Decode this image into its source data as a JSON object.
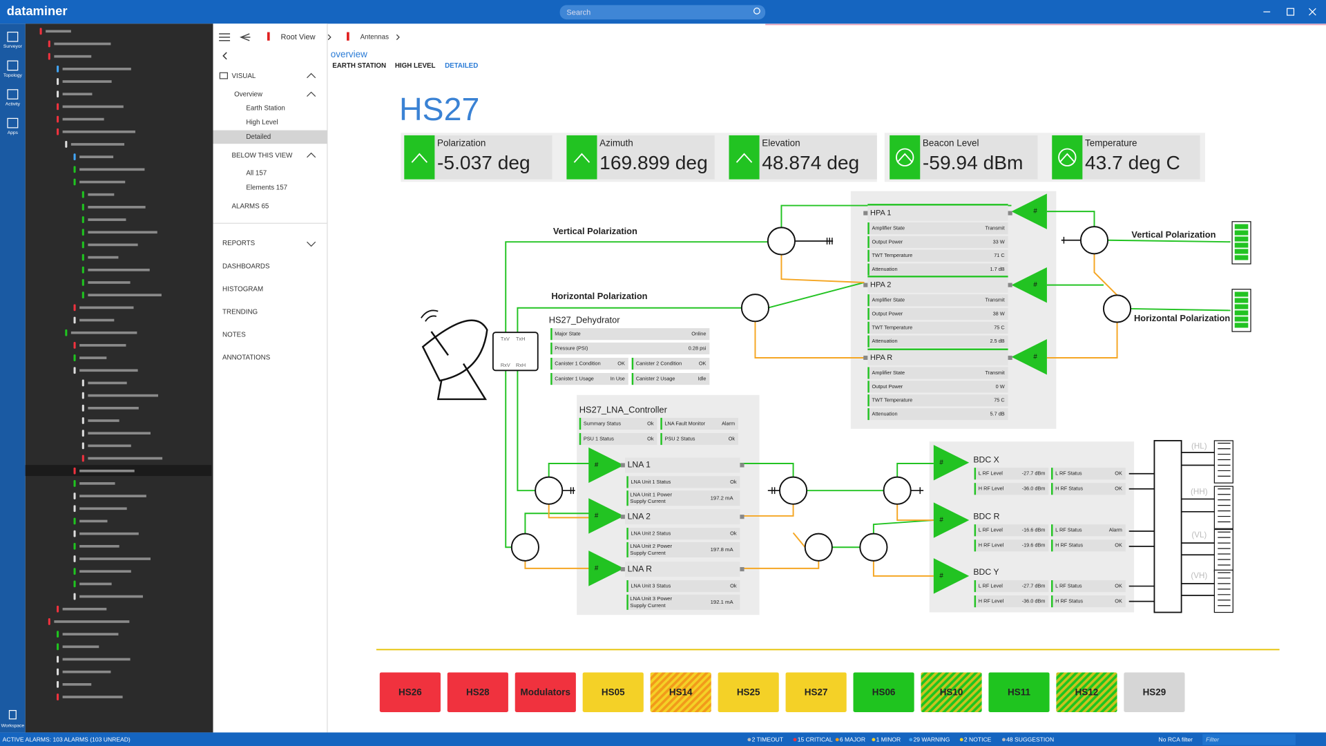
{
  "app": {
    "brand": "dataminer",
    "search": "Search"
  },
  "nav": [
    "Surveyor",
    "Topology",
    "Activity",
    "Apps"
  ],
  "workspace": "Workspace",
  "breadcrumb": [
    "Root View",
    "Antennas"
  ],
  "sidebar": {
    "visual": "VISUAL",
    "overview": "Overview",
    "views": [
      "Earth Station",
      "High Level",
      "Detailed"
    ],
    "below": "BELOW THIS VIEW",
    "below_items": [
      "All 157",
      "Elements 157"
    ],
    "alarms": "ALARMS 65",
    "menu": [
      "REPORTS",
      "DASHBOARDS",
      "HISTOGRAM",
      "TRENDING",
      "NOTES",
      "ANNOTATIONS"
    ]
  },
  "tabs": {
    "label": "overview",
    "items": [
      "EARTH STATION",
      "HIGH LEVEL",
      "DETAILED"
    ]
  },
  "title": "HS27",
  "kpis": [
    {
      "label": "Polarization",
      "value": "-5.037 deg"
    },
    {
      "label": "Azimuth",
      "value": "169.899 deg"
    },
    {
      "label": "Elevation",
      "value": "48.874 deg"
    },
    {
      "label": "Beacon Level",
      "value": "-59.94 dBm"
    },
    {
      "label": "Temperature",
      "value": "43.7 deg C"
    }
  ],
  "diagram": {
    "left_vertical": "Vertical Polarization",
    "left_horizontal": "Horizontal Polarization",
    "right_vertical": "Vertical Polarization",
    "right_horizontal": "Horizontal Polarization",
    "ports": [
      "TxV",
      "TxH",
      "RxV",
      "RxH"
    ],
    "amp_symbol": "#",
    "outputs": [
      "(HL)",
      "(HH)",
      "(VL)",
      "(VH)"
    ]
  },
  "hpas": [
    {
      "name": "HPA 1",
      "rows": [
        [
          "Amplifier State",
          "Transmit"
        ],
        [
          "Output Power",
          "33 W"
        ],
        [
          "TWT Temperature",
          "71 C"
        ],
        [
          "Attenuation",
          "1.7 dB"
        ]
      ]
    },
    {
      "name": "HPA 2",
      "rows": [
        [
          "Amplifier State",
          "Transmit"
        ],
        [
          "Output Power",
          "38 W"
        ],
        [
          "TWT Temperature",
          "75 C"
        ],
        [
          "Attenuation",
          "2.5 dB"
        ]
      ]
    },
    {
      "name": "HPA R",
      "rows": [
        [
          "Amplifier State",
          "Transmit"
        ],
        [
          "Output Power",
          "0 W"
        ],
        [
          "TWT Temperature",
          "75 C"
        ],
        [
          "Attenuation",
          "5.7 dB"
        ]
      ]
    }
  ],
  "dehydrator": {
    "name": "HS27_Dehydrator",
    "rows": [
      [
        "Major State",
        "Online"
      ],
      [
        "Pressure (PSI)",
        "0.28 psi"
      ]
    ],
    "pairs": [
      [
        [
          "Canister 1 Condition",
          "OK"
        ],
        [
          "Canister 2 Condition",
          "OK"
        ]
      ],
      [
        [
          "Canister 1 Usage",
          "In Use"
        ],
        [
          "Canister 2 Usage",
          "Idle"
        ]
      ]
    ]
  },
  "lna_controller": {
    "name": "HS27_LNA_Controller",
    "pairs": [
      [
        [
          "Summary Status",
          "Ok"
        ],
        [
          "LNA Fault Monitor",
          "Alarm"
        ]
      ],
      [
        [
          "PSU 1 Status",
          "Ok"
        ],
        [
          "PSU 2 Status",
          "Ok"
        ]
      ]
    ]
  },
  "lnas": [
    {
      "name": "LNA 1",
      "status": [
        "LNA Unit 1 Status",
        "Ok"
      ],
      "power": [
        [
          "LNA Unit 1 Power",
          "Supply Current"
        ],
        "197.2 mA"
      ]
    },
    {
      "name": "LNA 2",
      "status": [
        "LNA Unit 2 Status",
        "Ok"
      ],
      "power": [
        [
          "LNA Unit 2 Power",
          "Supply Current"
        ],
        "197.8 mA"
      ]
    },
    {
      "name": "LNA R",
      "status": [
        "LNA Unit 3 Status",
        "Ok"
      ],
      "power": [
        [
          "LNA Unit 3 Power",
          "Supply Current"
        ],
        "192.1 mA"
      ]
    }
  ],
  "bdcs": [
    {
      "name": "BDC X",
      "rows": [
        [
          [
            "L RF Level",
            "-27.7 dBm"
          ],
          [
            "L RF Status",
            "OK"
          ]
        ],
        [
          [
            "H RF Level",
            "-36.0 dBm"
          ],
          [
            "H RF Status",
            "OK"
          ]
        ]
      ]
    },
    {
      "name": "BDC R",
      "rows": [
        [
          [
            "L RF Level",
            "-16.6 dBm"
          ],
          [
            "L RF Status",
            "Alarm"
          ]
        ],
        [
          [
            "H RF Level",
            "-19.6 dBm"
          ],
          [
            "H RF Status",
            "OK"
          ]
        ]
      ]
    },
    {
      "name": "BDC Y",
      "rows": [
        [
          [
            "L RF Level",
            "-27.7 dBm"
          ],
          [
            "L RF Status",
            "OK"
          ]
        ],
        [
          [
            "H RF Level",
            "-36.0 dBm"
          ],
          [
            "H RF Status",
            "OK"
          ]
        ]
      ]
    }
  ],
  "buttons": [
    {
      "label": "HS26",
      "color": "#f0323e"
    },
    {
      "label": "HS28",
      "color": "#f0323e"
    },
    {
      "label": "Modulators",
      "color": "#f0323e"
    },
    {
      "label": "HS05",
      "color": "#f4d127"
    },
    {
      "label": "HS14",
      "color": "#f4d127",
      "hatch": "#f29a1a"
    },
    {
      "label": "HS25",
      "color": "#f4d127"
    },
    {
      "label": "HS27",
      "color": "#f4d127"
    },
    {
      "label": "HS06",
      "color": "#1fc41f"
    },
    {
      "label": "HS10",
      "color": "#1fc41f",
      "hatch": "#c9c21f"
    },
    {
      "label": "HS11",
      "color": "#1fc41f"
    },
    {
      "label": "HS12",
      "color": "#1fc41f",
      "hatch": "#c9c21f"
    },
    {
      "label": "HS29",
      "color": "#d6d6d6"
    }
  ],
  "status": {
    "active": "ACTIVE ALARMS: 103 ALARMS (103 UNREAD)",
    "counters": [
      {
        "label": "2 TIMEOUT",
        "color": "#bbbbbb"
      },
      {
        "label": "15 CRITICAL",
        "color": "#f0323e"
      },
      {
        "label": "6 MAJOR",
        "color": "#f29a1a"
      },
      {
        "label": "1 MINOR",
        "color": "#f4d127"
      },
      {
        "label": "29 WARNING",
        "color": "#42a5f5"
      },
      {
        "label": "2 NOTICE",
        "color": "#f4d127"
      },
      {
        "label": "48 SUGGESTION",
        "color": "#bbbbbb"
      }
    ],
    "rca": "No RCA filter",
    "filter": "Filter"
  }
}
